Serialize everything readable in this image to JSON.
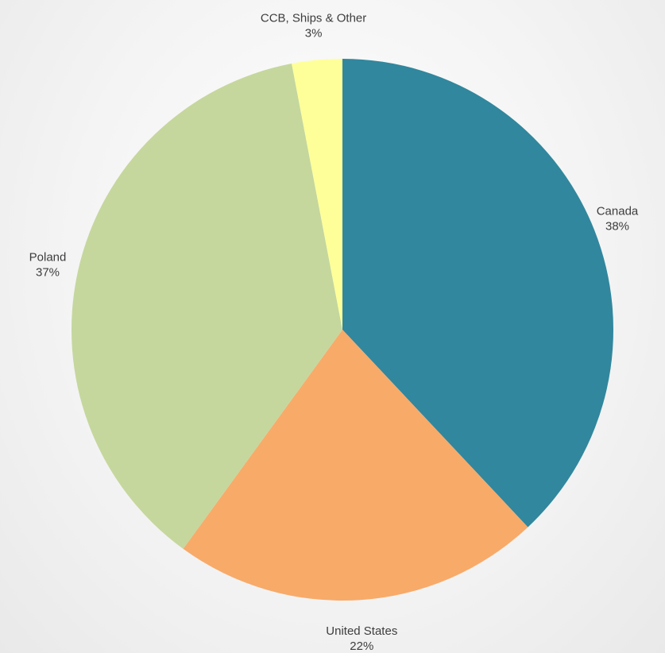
{
  "chart_data": {
    "type": "pie",
    "start_angle_deg": 0,
    "direction": "clockwise",
    "slices": [
      {
        "label": "Canada",
        "value": 38,
        "value_label": "38%",
        "color": "#31879D"
      },
      {
        "label": "United States",
        "value": 22,
        "value_label": "22%",
        "color": "#F8AA69"
      },
      {
        "label": "Poland",
        "value": 37,
        "value_label": "37%",
        "color": "#C5D79D"
      },
      {
        "label": "CCB, Ships & Other",
        "value": 3,
        "value_label": "3%",
        "color": "#FFFF99"
      }
    ],
    "legend": "none"
  }
}
